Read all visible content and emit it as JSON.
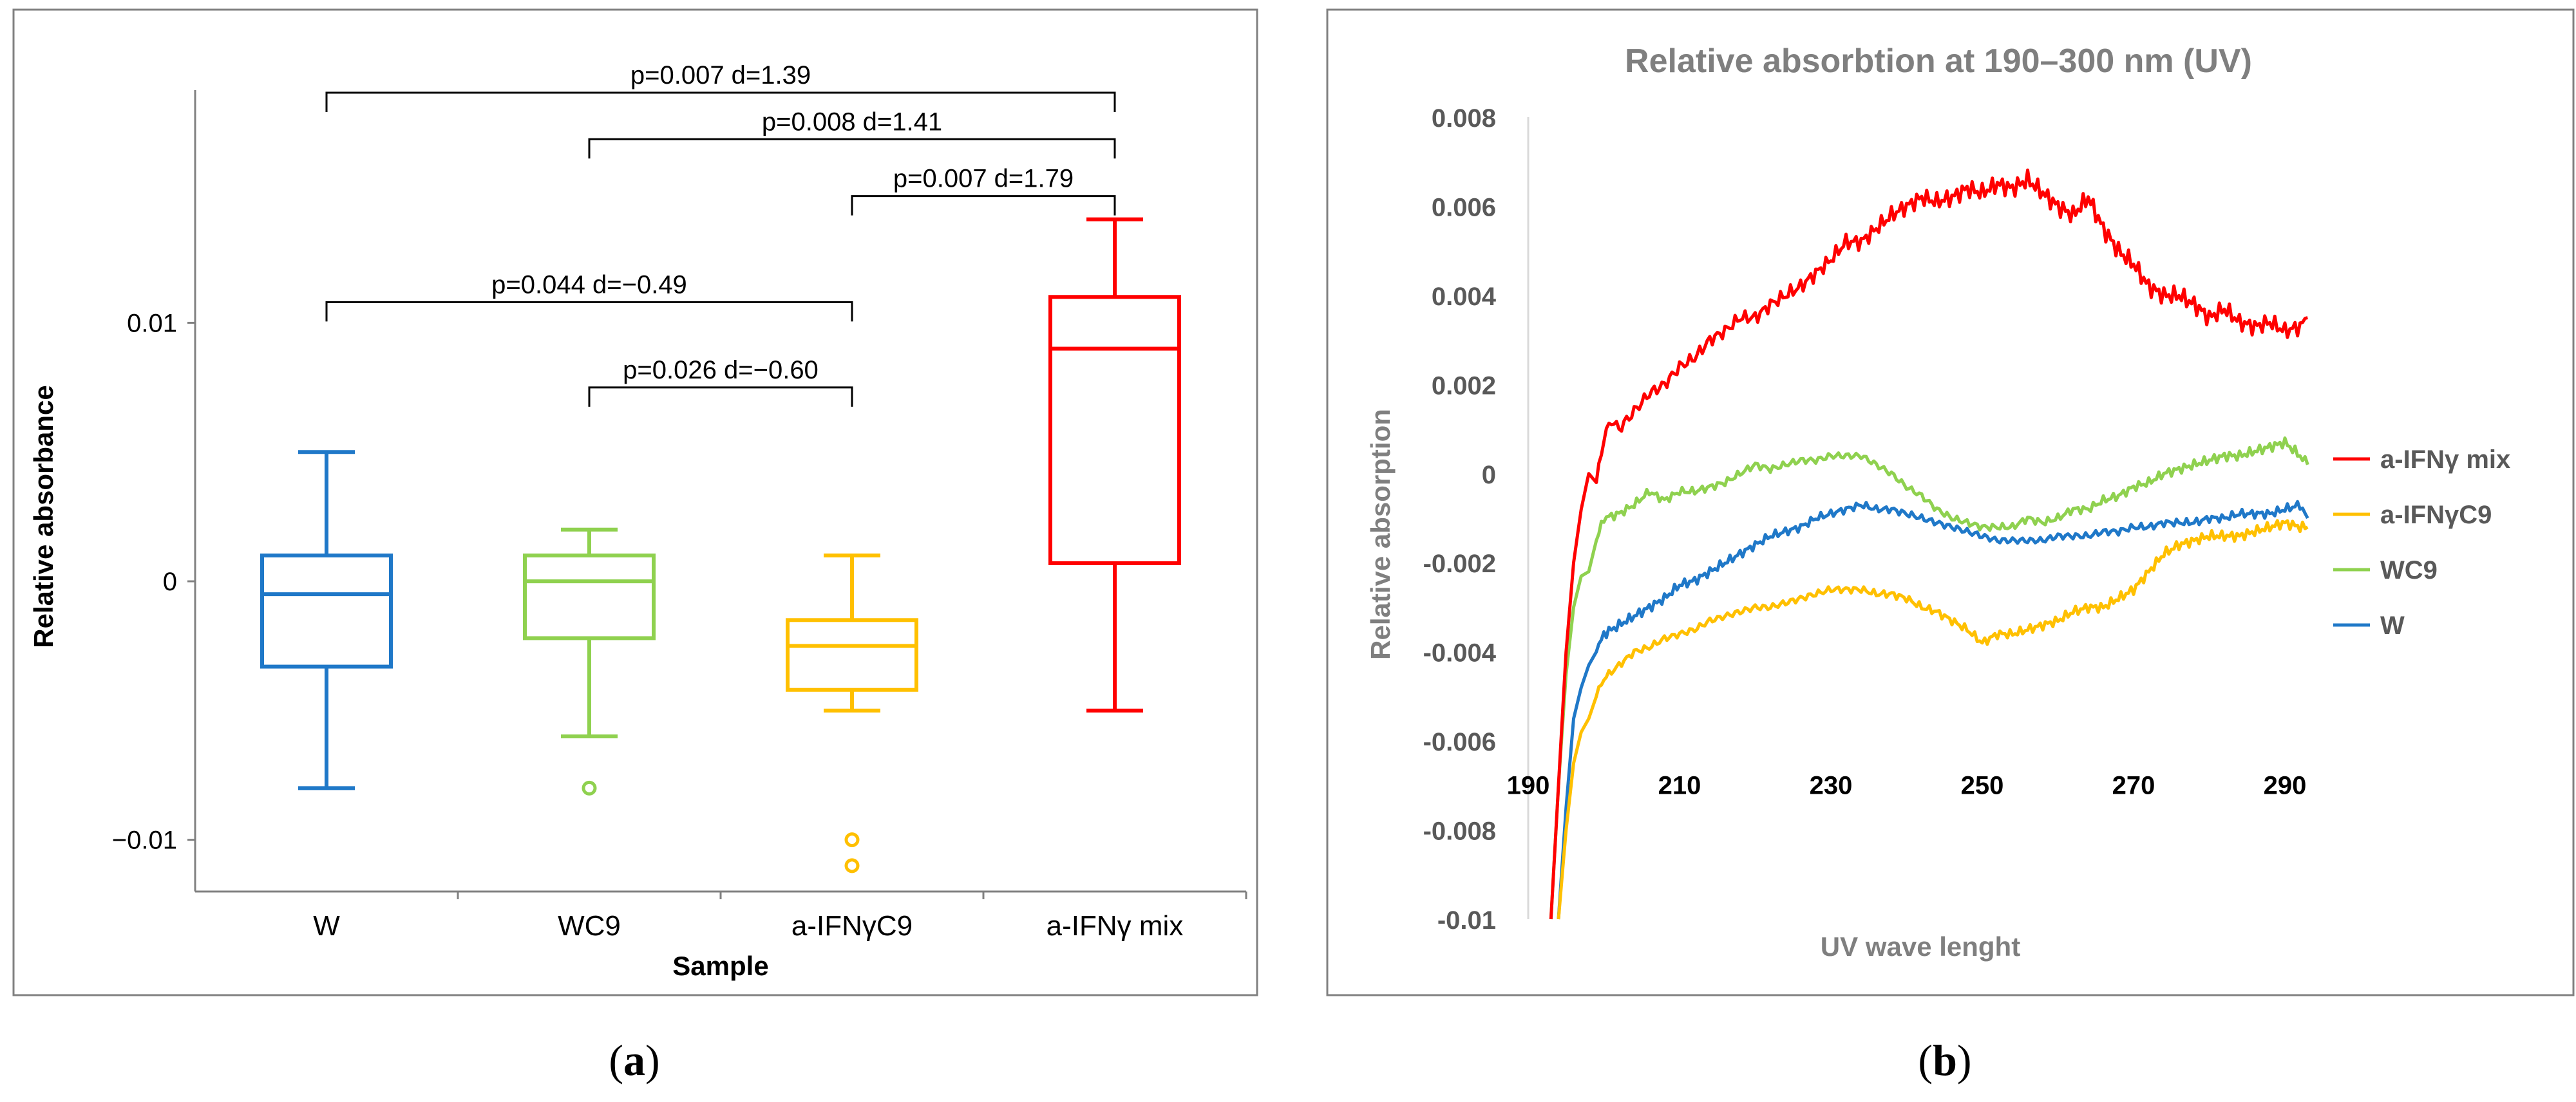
{
  "panel_labels": {
    "a": "a",
    "b": "b"
  },
  "colors": {
    "W": "#1f78c8",
    "WC9": "#8fd14f",
    "a-IFNγC9": "#ffc000",
    "a-IFNγ mix": "#ff0000",
    "axis": "#808080",
    "frame": "#808080",
    "title": "#7f7f7f"
  },
  "chart_data": [
    {
      "type": "box",
      "panel": "a",
      "title": "",
      "xlabel": "Sample",
      "ylabel": "Relative absorbance",
      "ylim": [
        -0.012,
        0.019
      ],
      "yticks": [
        {
          "value": 0.01,
          "label": "0.01"
        },
        {
          "value": 0.0,
          "label": "0"
        },
        {
          "value": -0.01,
          "label": "−0.01"
        }
      ],
      "categories": [
        "W",
        "WC9",
        "a-IFNγC9",
        "a-IFNγ mix"
      ],
      "boxes": [
        {
          "name": "W",
          "whisker_low": -0.008,
          "q1": -0.0033,
          "median": -0.0005,
          "q3": 0.001,
          "whisker_high": 0.005,
          "outliers": []
        },
        {
          "name": "WC9",
          "whisker_low": -0.006,
          "q1": -0.0022,
          "median": 0.0,
          "q3": 0.001,
          "whisker_high": 0.002,
          "outliers": [
            -0.008
          ]
        },
        {
          "name": "a-IFNγC9",
          "whisker_low": -0.005,
          "q1": -0.0042,
          "median": -0.0025,
          "q3": -0.0015,
          "whisker_high": 0.001,
          "outliers": [
            -0.01,
            -0.011
          ]
        },
        {
          "name": "a-IFNγ mix",
          "whisker_low": -0.005,
          "q1": 0.0007,
          "median": 0.009,
          "q3": 0.011,
          "whisker_high": 0.014,
          "outliers": []
        }
      ],
      "comparisons": [
        {
          "from": 0,
          "to": 3,
          "level": 0.0189,
          "label": "p=0.007   d=1.39"
        },
        {
          "from": 1,
          "to": 3,
          "level": 0.0171,
          "label": "p=0.008   d=1.41"
        },
        {
          "from": 2,
          "to": 3,
          "level": 0.0149,
          "label": "p=0.007   d=1.79"
        },
        {
          "from": 0,
          "to": 2,
          "level": 0.0108,
          "label": "p=0.044   d=−0.49"
        },
        {
          "from": 1,
          "to": 2,
          "level": 0.0075,
          "label": "p=0.026   d=−0.60"
        }
      ]
    },
    {
      "type": "line",
      "panel": "b",
      "title": "Relative absorbtion at 190–300 nm (UV)",
      "xlabel": "UV wave lenght",
      "ylabel": "Relative absorption",
      "xlim": [
        190,
        294
      ],
      "ylim": [
        -0.01,
        0.008
      ],
      "xticks": [
        190,
        210,
        230,
        250,
        270,
        290
      ],
      "yticks": [
        {
          "value": 0.008,
          "label": "0.008"
        },
        {
          "value": 0.006,
          "label": "0.006"
        },
        {
          "value": 0.004,
          "label": "0.004"
        },
        {
          "value": 0.002,
          "label": "0.002"
        },
        {
          "value": 0,
          "label": "0"
        },
        {
          "value": -0.002,
          "label": "-0.002"
        },
        {
          "value": -0.004,
          "label": "-0.004"
        },
        {
          "value": -0.006,
          "label": "-0.006"
        },
        {
          "value": -0.008,
          "label": "-0.008"
        },
        {
          "value": -0.01,
          "label": "-0.01"
        }
      ],
      "x_axis_crosses_y": -0.0065,
      "legend": [
        "a-IFNγ mix",
        "a-IFNγC9",
        "WC9",
        "W"
      ],
      "legend_position": "right",
      "series": [
        {
          "name": "a-IFNγ mix",
          "x": [
            193,
            194,
            195,
            196,
            197,
            198,
            199,
            200,
            201,
            202,
            204,
            206,
            208,
            210,
            212,
            214,
            216,
            218,
            220,
            222,
            224,
            226,
            228,
            230,
            232,
            234,
            236,
            238,
            240,
            242,
            244,
            246,
            248,
            250,
            252,
            254,
            256,
            258,
            260,
            262,
            264,
            266,
            268,
            270,
            272,
            274,
            276,
            278,
            280,
            282,
            284,
            286,
            288,
            290,
            292,
            293
          ],
          "y": [
            -0.01,
            -0.007,
            -0.004,
            -0.002,
            -0.0008,
            0.0,
            -0.0002,
            0.0008,
            0.0012,
            0.001,
            0.0014,
            0.0018,
            0.002,
            0.0024,
            0.0026,
            0.003,
            0.0032,
            0.0035,
            0.0035,
            0.0038,
            0.004,
            0.0042,
            0.0045,
            0.0048,
            0.0052,
            0.0052,
            0.0055,
            0.0058,
            0.006,
            0.0062,
            0.0061,
            0.0062,
            0.0064,
            0.0063,
            0.0065,
            0.0064,
            0.0066,
            0.0063,
            0.006,
            0.0058,
            0.0062,
            0.0055,
            0.005,
            0.0047,
            0.0042,
            0.004,
            0.004,
            0.0038,
            0.0035,
            0.0037,
            0.0034,
            0.0033,
            0.0034,
            0.0032,
            0.0033,
            0.0035
          ]
        },
        {
          "name": "a-IFNγC9",
          "x": [
            194,
            195,
            196,
            197,
            198,
            199,
            200,
            202,
            204,
            206,
            208,
            210,
            212,
            214,
            216,
            218,
            220,
            222,
            224,
            226,
            228,
            230,
            232,
            234,
            236,
            238,
            240,
            242,
            244,
            246,
            248,
            250,
            252,
            254,
            256,
            258,
            260,
            262,
            264,
            266,
            268,
            270,
            272,
            274,
            276,
            278,
            280,
            282,
            284,
            286,
            288,
            290,
            292,
            293
          ],
          "y": [
            -0.01,
            -0.008,
            -0.0065,
            -0.0058,
            -0.0055,
            -0.005,
            -0.0046,
            -0.0043,
            -0.004,
            -0.0039,
            -0.0037,
            -0.0036,
            -0.0035,
            -0.0033,
            -0.0032,
            -0.0031,
            -0.003,
            -0.003,
            -0.0029,
            -0.0028,
            -0.0027,
            -0.0026,
            -0.0026,
            -0.0026,
            -0.0027,
            -0.0027,
            -0.0028,
            -0.003,
            -0.0031,
            -0.0033,
            -0.0035,
            -0.0038,
            -0.0036,
            -0.0036,
            -0.0035,
            -0.0034,
            -0.0033,
            -0.0031,
            -0.003,
            -0.003,
            -0.0028,
            -0.0026,
            -0.0022,
            -0.0018,
            -0.0016,
            -0.0015,
            -0.0014,
            -0.0014,
            -0.0014,
            -0.0013,
            -0.0012,
            -0.0011,
            -0.0012,
            -0.0012
          ]
        },
        {
          "name": "WC9",
          "x": [
            193,
            194,
            195,
            196,
            197,
            198,
            199,
            200,
            202,
            204,
            206,
            208,
            210,
            212,
            214,
            216,
            218,
            220,
            222,
            224,
            226,
            228,
            230,
            232,
            234,
            236,
            238,
            240,
            242,
            244,
            246,
            248,
            250,
            252,
            254,
            256,
            258,
            260,
            262,
            264,
            266,
            268,
            270,
            272,
            274,
            276,
            278,
            280,
            282,
            284,
            286,
            288,
            290,
            292,
            293
          ],
          "y": [
            -0.01,
            -0.007,
            -0.0045,
            -0.003,
            -0.0023,
            -0.0022,
            -0.0015,
            -0.001,
            -0.0009,
            -0.0007,
            -0.0004,
            -0.0006,
            -0.0004,
            -0.0004,
            -0.0003,
            -0.0002,
            0.0,
            0.0002,
            0.0001,
            0.0002,
            0.0003,
            0.0003,
            0.0004,
            0.0004,
            0.0004,
            0.0002,
            0.0,
            -0.0003,
            -0.0005,
            -0.0008,
            -0.001,
            -0.0011,
            -0.0012,
            -0.0012,
            -0.0012,
            -0.001,
            -0.0011,
            -0.001,
            -0.0008,
            -0.0008,
            -0.0006,
            -0.0005,
            -0.0003,
            -0.0002,
            0.0,
            0.0001,
            0.0002,
            0.0003,
            0.0004,
            0.0004,
            0.0005,
            0.0006,
            0.0007,
            0.0004,
            0.0002
          ]
        },
        {
          "name": "W",
          "x": [
            194,
            195,
            196,
            197,
            198,
            199,
            200,
            202,
            204,
            206,
            208,
            210,
            212,
            214,
            216,
            218,
            220,
            222,
            224,
            226,
            228,
            230,
            232,
            234,
            236,
            238,
            240,
            242,
            244,
            246,
            248,
            250,
            252,
            254,
            256,
            258,
            260,
            262,
            264,
            266,
            268,
            270,
            272,
            274,
            276,
            278,
            280,
            282,
            284,
            286,
            288,
            290,
            292,
            293
          ],
          "y": [
            -0.01,
            -0.0075,
            -0.0055,
            -0.0048,
            -0.0043,
            -0.004,
            -0.0036,
            -0.0034,
            -0.0032,
            -0.003,
            -0.0028,
            -0.0025,
            -0.0024,
            -0.0022,
            -0.002,
            -0.0018,
            -0.0016,
            -0.0014,
            -0.0013,
            -0.0012,
            -0.001,
            -0.0009,
            -0.0008,
            -0.0007,
            -0.0008,
            -0.0008,
            -0.0009,
            -0.001,
            -0.0011,
            -0.0012,
            -0.0013,
            -0.0014,
            -0.0015,
            -0.0015,
            -0.0015,
            -0.0015,
            -0.0014,
            -0.0014,
            -0.0014,
            -0.0013,
            -0.0013,
            -0.0012,
            -0.0012,
            -0.0011,
            -0.0011,
            -0.0011,
            -0.001,
            -0.001,
            -0.0009,
            -0.0009,
            -0.0009,
            -0.0008,
            -0.0007,
            -0.001
          ]
        }
      ]
    }
  ]
}
